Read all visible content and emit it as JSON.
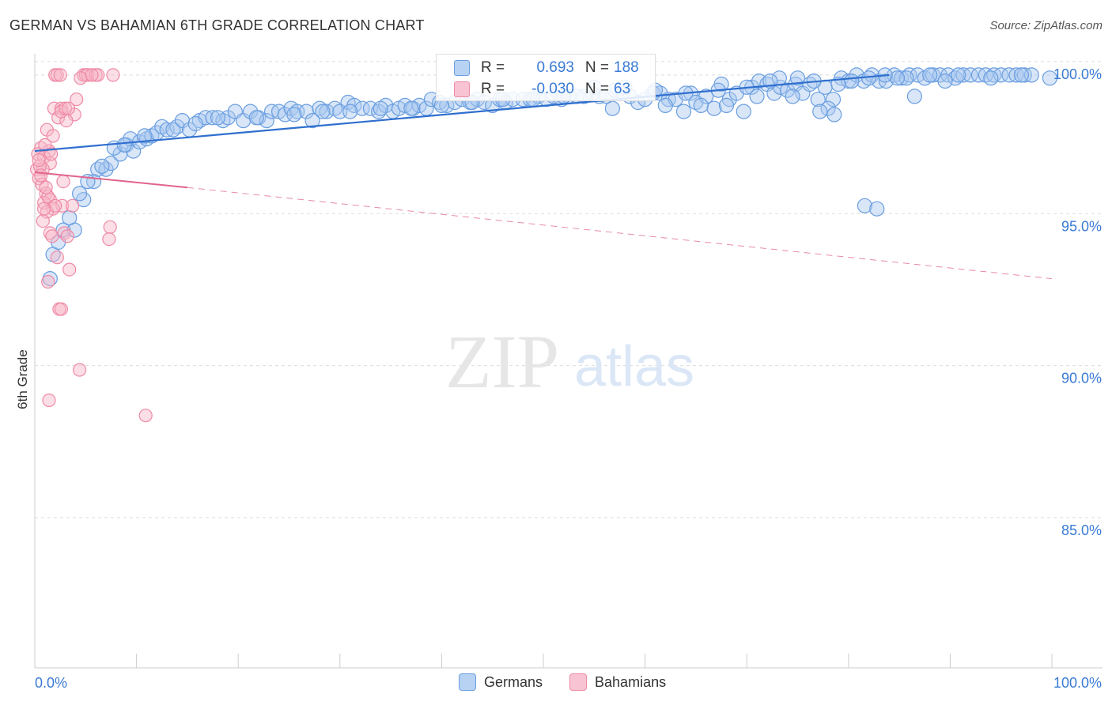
{
  "title": "GERMAN VS BAHAMIAN 6TH GRADE CORRELATION CHART",
  "source": "Source: ZipAtlas.com",
  "watermark": {
    "part1": "ZIP",
    "part2": "atlas"
  },
  "stats": {
    "german": {
      "r_label": "R =",
      "r": "0.693",
      "n_label": "N =",
      "n": "188"
    },
    "bahamian": {
      "r_label": "R =",
      "r": "-0.030",
      "n_label": "N =",
      "n": "63"
    }
  },
  "legend": {
    "german": "Germans",
    "bahamian": "Bahamians"
  },
  "colors": {
    "german_fill": "#a8c8f0",
    "german_stroke": "#6a9ee0",
    "german_line": "#2f6fce",
    "bahamian_fill": "#f7b6c8",
    "bahamian_stroke": "#ee8aa6",
    "bahamian_line": "#e0648c",
    "tick_text": "#3a7bd5",
    "grid": "#dddddd"
  },
  "chart_data": {
    "type": "scatter",
    "title": "GERMAN VS BAHAMIAN 6TH GRADE CORRELATION CHART",
    "xlabel": "",
    "ylabel": "6th Grade",
    "xlim": [
      0,
      100
    ],
    "ylim": [
      80.5,
      100.7
    ],
    "x_tick_labels": [
      "0.0%",
      "100.0%"
    ],
    "y_ticks": [
      100,
      95,
      90,
      85
    ],
    "y_tick_labels": [
      "100.0%",
      "95.0%",
      "90.0%",
      "85.0%"
    ],
    "series": [
      {
        "name": "Germans",
        "trend": {
          "x": [
            0,
            84
          ],
          "y": [
            97.5,
            100
          ]
        },
        "points": [
          [
            1.5,
            93.3
          ],
          [
            1.8,
            94.1
          ],
          [
            2.3,
            94.5
          ],
          [
            2.8,
            94.9
          ],
          [
            3.9,
            94.9
          ],
          [
            3.4,
            95.3
          ],
          [
            4.8,
            95.9
          ],
          [
            4.4,
            96.1
          ],
          [
            5.8,
            96.5
          ],
          [
            6.2,
            96.9
          ],
          [
            7.0,
            96.9
          ],
          [
            7.5,
            97.1
          ],
          [
            8.4,
            97.4
          ],
          [
            7.8,
            97.6
          ],
          [
            9.0,
            97.7
          ],
          [
            9.7,
            97.5
          ],
          [
            9.4,
            97.9
          ],
          [
            10.3,
            97.8
          ],
          [
            11.0,
            97.9
          ],
          [
            11.5,
            98.0
          ],
          [
            12.0,
            98.1
          ],
          [
            12.5,
            98.3
          ],
          [
            13.0,
            98.2
          ],
          [
            14.0,
            98.3
          ],
          [
            14.5,
            98.5
          ],
          [
            15.2,
            98.2
          ],
          [
            16.2,
            98.5
          ],
          [
            16.8,
            98.6
          ],
          [
            17.5,
            98.6
          ],
          [
            18.5,
            98.5
          ],
          [
            19.0,
            98.6
          ],
          [
            19.7,
            98.8
          ],
          [
            20.5,
            98.5
          ],
          [
            21.2,
            98.8
          ],
          [
            22.0,
            98.6
          ],
          [
            22.8,
            98.5
          ],
          [
            23.3,
            98.8
          ],
          [
            24.0,
            98.8
          ],
          [
            24.6,
            98.7
          ],
          [
            25.2,
            98.9
          ],
          [
            25.8,
            98.8
          ],
          [
            26.7,
            98.8
          ],
          [
            27.3,
            98.5
          ],
          [
            28.0,
            98.9
          ],
          [
            28.7,
            98.8
          ],
          [
            29.5,
            98.9
          ],
          [
            30.0,
            98.8
          ],
          [
            30.8,
            99.1
          ],
          [
            31.4,
            99.0
          ],
          [
            32.2,
            98.9
          ],
          [
            33.0,
            98.9
          ],
          [
            33.8,
            98.8
          ],
          [
            34.5,
            99.0
          ],
          [
            35.2,
            98.8
          ],
          [
            35.8,
            98.9
          ],
          [
            36.4,
            99.0
          ],
          [
            37.2,
            98.9
          ],
          [
            37.8,
            99.0
          ],
          [
            38.5,
            98.9
          ],
          [
            39.0,
            99.2
          ],
          [
            39.8,
            99.1
          ],
          [
            40.5,
            99.0
          ],
          [
            41.3,
            99.1
          ],
          [
            42.0,
            99.2
          ],
          [
            42.8,
            99.1
          ],
          [
            43.5,
            99.2
          ],
          [
            44.2,
            99.1
          ],
          [
            45.0,
            99.0
          ],
          [
            45.7,
            99.2
          ],
          [
            46.3,
            99.1
          ],
          [
            47.0,
            99.2
          ],
          [
            48.0,
            99.2
          ],
          [
            48.7,
            99.2
          ],
          [
            49.5,
            99.3
          ],
          [
            50.3,
            99.2
          ],
          [
            51.0,
            99.3
          ],
          [
            51.8,
            99.2
          ],
          [
            52.5,
            99.3
          ],
          [
            53.3,
            99.3
          ],
          [
            54.0,
            99.3
          ],
          [
            54.8,
            99.4
          ],
          [
            55.5,
            99.3
          ],
          [
            56.2,
            99.3
          ],
          [
            57.0,
            99.5
          ],
          [
            57.8,
            99.4
          ],
          [
            58.5,
            99.3
          ],
          [
            59.3,
            99.1
          ],
          [
            60.0,
            99.2
          ],
          [
            60.8,
            99.4
          ],
          [
            61.5,
            99.4
          ],
          [
            62.3,
            99.2
          ],
          [
            63.0,
            99.2
          ],
          [
            63.8,
            98.8
          ],
          [
            64.5,
            99.4
          ],
          [
            65.0,
            99.1
          ],
          [
            66.0,
            99.3
          ],
          [
            66.8,
            98.9
          ],
          [
            67.5,
            99.7
          ],
          [
            68.3,
            99.2
          ],
          [
            69.0,
            99.4
          ],
          [
            69.7,
            98.8
          ],
          [
            70.5,
            99.6
          ],
          [
            71.2,
            99.8
          ],
          [
            72.0,
            99.7
          ],
          [
            72.7,
            99.4
          ],
          [
            73.3,
            99.6
          ],
          [
            74.0,
            99.5
          ],
          [
            74.8,
            99.7
          ],
          [
            75.5,
            99.4
          ],
          [
            76.2,
            99.7
          ],
          [
            77.0,
            99.2
          ],
          [
            77.7,
            99.6
          ],
          [
            78.5,
            99.2
          ],
          [
            79.3,
            99.9
          ],
          [
            80.0,
            99.8
          ],
          [
            80.8,
            100.0
          ],
          [
            81.5,
            99.8
          ],
          [
            82.3,
            100.0
          ],
          [
            83.0,
            99.8
          ],
          [
            83.7,
            99.8
          ],
          [
            84.5,
            100.0
          ],
          [
            85.2,
            99.9
          ],
          [
            86.0,
            100.0
          ],
          [
            86.8,
            100.0
          ],
          [
            87.5,
            99.9
          ],
          [
            88.3,
            100.0
          ],
          [
            89.0,
            100.0
          ],
          [
            89.8,
            100.0
          ],
          [
            90.5,
            99.9
          ],
          [
            91.3,
            100.0
          ],
          [
            92.0,
            100.0
          ],
          [
            92.8,
            100.0
          ],
          [
            93.5,
            100.0
          ],
          [
            94.3,
            100.0
          ],
          [
            95.0,
            100.0
          ],
          [
            95.8,
            100.0
          ],
          [
            96.5,
            100.0
          ],
          [
            97.3,
            100.0
          ],
          [
            98.0,
            100.0
          ],
          [
            99.8,
            99.9
          ],
          [
            62.0,
            99.0
          ],
          [
            65.5,
            99.0
          ],
          [
            68.0,
            99.0
          ],
          [
            71.0,
            99.3
          ],
          [
            74.5,
            99.3
          ],
          [
            78.0,
            98.9
          ],
          [
            80.3,
            99.8
          ],
          [
            73.2,
            99.9
          ],
          [
            56.8,
            98.9
          ],
          [
            77.2,
            98.8
          ],
          [
            78.6,
            98.7
          ],
          [
            81.6,
            95.7
          ],
          [
            82.8,
            95.6
          ],
          [
            86.5,
            99.3
          ],
          [
            85.7,
            99.9
          ],
          [
            89.5,
            99.8
          ],
          [
            94.0,
            99.9
          ],
          [
            97.0,
            100.0
          ],
          [
            90.8,
            100.0
          ],
          [
            88.0,
            100.0
          ],
          [
            84.8,
            99.9
          ],
          [
            83.6,
            100.0
          ],
          [
            82.0,
            99.9
          ],
          [
            79.0,
            99.7
          ],
          [
            76.6,
            99.8
          ],
          [
            75.0,
            99.9
          ],
          [
            72.3,
            99.8
          ],
          [
            70.0,
            99.6
          ],
          [
            67.2,
            99.5
          ],
          [
            64.0,
            99.4
          ],
          [
            61.0,
            99.5
          ],
          [
            58.0,
            99.6
          ],
          [
            55.0,
            99.6
          ],
          [
            52.0,
            99.3
          ],
          [
            49.0,
            99.2
          ],
          [
            46.0,
            99.2
          ],
          [
            43.0,
            99.1
          ],
          [
            40.0,
            99.0
          ],
          [
            37.0,
            98.9
          ],
          [
            34.0,
            98.9
          ],
          [
            31.0,
            98.8
          ],
          [
            28.3,
            98.8
          ],
          [
            25.5,
            98.7
          ],
          [
            21.8,
            98.6
          ],
          [
            18.0,
            98.6
          ],
          [
            15.8,
            98.4
          ],
          [
            13.6,
            98.2
          ],
          [
            10.8,
            98.0
          ],
          [
            8.8,
            97.7
          ],
          [
            6.6,
            97.0
          ],
          [
            5.2,
            96.5
          ]
        ]
      },
      {
        "name": "Bahamians",
        "trend": {
          "x": [
            0,
            15
          ],
          "y": [
            96.8,
            96.3
          ]
        },
        "trend_extended": {
          "x": [
            15,
            100
          ],
          "y": [
            96.3,
            93.3
          ]
        },
        "points": [
          [
            2.0,
            100.0
          ],
          [
            2.2,
            100.0
          ],
          [
            2.5,
            100.0
          ],
          [
            4.8,
            100.0
          ],
          [
            5.0,
            100.0
          ],
          [
            5.2,
            100.0
          ],
          [
            6.0,
            100.0
          ],
          [
            6.2,
            100.0
          ],
          [
            7.7,
            100.0
          ],
          [
            4.5,
            99.9
          ],
          [
            5.6,
            100.0
          ],
          [
            4.1,
            99.2
          ],
          [
            1.9,
            98.9
          ],
          [
            2.6,
            98.9
          ],
          [
            3.9,
            98.7
          ],
          [
            2.3,
            98.6
          ],
          [
            3.1,
            98.5
          ],
          [
            1.2,
            98.2
          ],
          [
            1.8,
            98.0
          ],
          [
            0.6,
            97.6
          ],
          [
            1.4,
            97.5
          ],
          [
            0.3,
            97.4
          ],
          [
            0.9,
            97.3
          ],
          [
            1.5,
            97.1
          ],
          [
            0.2,
            96.9
          ],
          [
            0.8,
            96.9
          ],
          [
            0.4,
            96.6
          ],
          [
            2.8,
            96.5
          ],
          [
            0.7,
            96.4
          ],
          [
            1.1,
            96.1
          ],
          [
            1.5,
            95.9
          ],
          [
            0.9,
            95.8
          ],
          [
            2.7,
            95.7
          ],
          [
            3.7,
            95.7
          ],
          [
            1.8,
            95.6
          ],
          [
            1.2,
            95.5
          ],
          [
            0.8,
            95.2
          ],
          [
            7.4,
            95.0
          ],
          [
            1.5,
            94.8
          ],
          [
            2.9,
            94.8
          ],
          [
            7.3,
            94.6
          ],
          [
            2.2,
            94.0
          ],
          [
            3.4,
            93.6
          ],
          [
            1.3,
            93.2
          ],
          [
            2.4,
            92.3
          ],
          [
            2.6,
            92.3
          ],
          [
            4.4,
            90.3
          ],
          [
            1.4,
            89.3
          ],
          [
            10.9,
            88.8
          ],
          [
            0.5,
            97.0
          ],
          [
            1.0,
            97.7
          ],
          [
            1.3,
            96.0
          ],
          [
            0.6,
            96.7
          ],
          [
            2.0,
            95.7
          ],
          [
            2.6,
            98.8
          ],
          [
            3.0,
            98.9
          ],
          [
            3.3,
            98.9
          ],
          [
            1.6,
            97.4
          ],
          [
            0.4,
            97.2
          ],
          [
            1.1,
            96.3
          ],
          [
            0.9,
            95.6
          ],
          [
            1.7,
            94.7
          ],
          [
            3.2,
            94.7
          ]
        ]
      }
    ]
  }
}
